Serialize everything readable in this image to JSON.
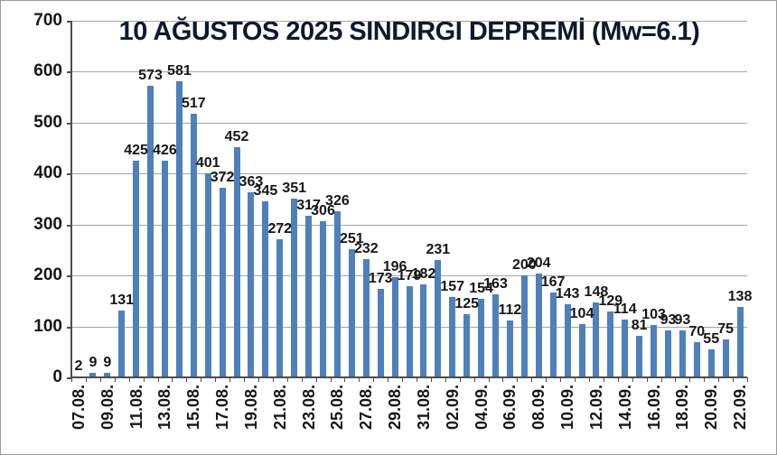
{
  "title": "10 AĞUSTOS 2025 SINDIRGI DEPREMİ (Mw=6.1)",
  "chart_data": {
    "type": "bar",
    "title": "10 AĞUSTOS 2025 SINDIRGI DEPREMİ (Mw=6.1)",
    "xlabel": "",
    "ylabel": "",
    "ylim": [
      0,
      700
    ],
    "y_ticks": [
      0,
      100,
      200,
      300,
      400,
      500,
      600,
      700
    ],
    "grid": true,
    "legend": false,
    "data_labels": true,
    "bar_color": "#4e80bc",
    "categories": [
      "07.08.",
      "08.08.",
      "09.08.",
      "10.08.",
      "11.08.",
      "12.08.",
      "13.08.",
      "14.08.",
      "15.08.",
      "16.08.",
      "17.08.",
      "18.08.",
      "19.08.",
      "20.08.",
      "21.08.",
      "22.08.",
      "23.08.",
      "24.08.",
      "25.08.",
      "26.08.",
      "27.08.",
      "28.08.",
      "29.08.",
      "30.08.",
      "31.08.",
      "01.09.",
      "02.09.",
      "03.09.",
      "04.09.",
      "05.09.",
      "06.09.",
      "07.09.",
      "08.09.",
      "09.09.",
      "10.09.",
      "11.09.",
      "12.09.",
      "13.09.",
      "14.09.",
      "15.09.",
      "16.09.",
      "17.09.",
      "18.09.",
      "19.09.",
      "20.09.",
      "21.09.",
      "22.09."
    ],
    "values": [
      2,
      9,
      9,
      131,
      425,
      573,
      426,
      581,
      517,
      401,
      372,
      452,
      363,
      345,
      272,
      351,
      317,
      306,
      326,
      251,
      232,
      173,
      196,
      179,
      182,
      231,
      157,
      125,
      154,
      163,
      112,
      200,
      204,
      167,
      143,
      104,
      148,
      129,
      114,
      81,
      103,
      93,
      93,
      70,
      55,
      75,
      138
    ],
    "x_tick_labels": [
      "07.08.",
      "09.08.",
      "11.08.",
      "13.08.",
      "15.08.",
      "17.08.",
      "19.08.",
      "21.08.",
      "23.08.",
      "25.08.",
      "27.08.",
      "29.08.",
      "31.08.",
      "02.09.",
      "04.09.",
      "06.09.",
      "08.09.",
      "10.09.",
      "12.09.",
      "14.09.",
      "16.09.",
      "18.09.",
      "20.09.",
      "22.09."
    ],
    "x_tick_every": 2
  }
}
